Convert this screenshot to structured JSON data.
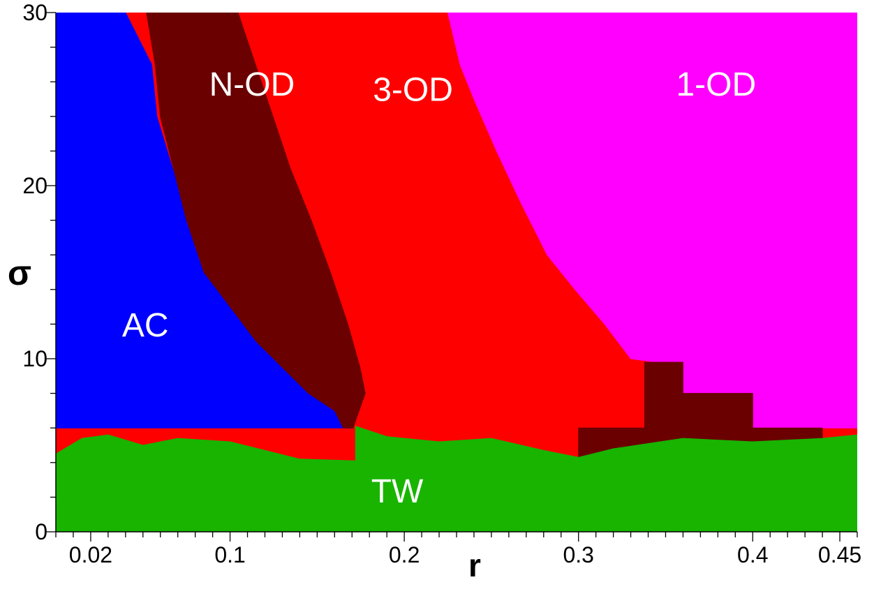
{
  "chart_data": {
    "type": "heatmap",
    "title": "",
    "xlabel": "r",
    "ylabel": "σ",
    "xlim": [
      0.0,
      0.46
    ],
    "ylim": [
      0,
      30
    ],
    "grid": false,
    "legend": "none",
    "x_ticks": [
      {
        "value": 0.02,
        "label": "0.02"
      },
      {
        "value": 0.1,
        "label": "0.1"
      },
      {
        "value": 0.2,
        "label": "0.2"
      },
      {
        "value": 0.3,
        "label": "0.3"
      },
      {
        "value": 0.4,
        "label": "0.4"
      },
      {
        "value": 0.45,
        "label": "0.45"
      }
    ],
    "y_ticks": [
      {
        "value": 0,
        "label": "0"
      },
      {
        "value": 10,
        "label": "10"
      },
      {
        "value": 20,
        "label": "20"
      },
      {
        "value": 30,
        "label": "30"
      }
    ],
    "regions": [
      {
        "name": "AC",
        "color": "#0000ff",
        "label_at": [
          0.038,
          11.3
        ],
        "boundary": [
          [
            0.0,
            30
          ],
          [
            0.0,
            6
          ],
          [
            0.17,
            6
          ],
          [
            0.165,
            7
          ],
          [
            0.15,
            8
          ],
          [
            0.13,
            9.5
          ],
          [
            0.115,
            11
          ],
          [
            0.1,
            13
          ],
          [
            0.085,
            15
          ],
          [
            0.075,
            18
          ],
          [
            0.07,
            20
          ],
          [
            0.058,
            24
          ],
          [
            0.055,
            27
          ],
          [
            0.04,
            30
          ]
        ]
      },
      {
        "name": "N-OD",
        "color": "#6a0000",
        "label_at": [
          0.088,
          25.2
        ],
        "boundary": [
          [
            0.052,
            30
          ],
          [
            0.105,
            30
          ],
          [
            0.115,
            27
          ],
          [
            0.125,
            24
          ],
          [
            0.135,
            21
          ],
          [
            0.147,
            18
          ],
          [
            0.158,
            15
          ],
          [
            0.168,
            12
          ],
          [
            0.175,
            9.5
          ],
          [
            0.178,
            8
          ],
          [
            0.175,
            6
          ],
          [
            0.165,
            6
          ],
          [
            0.16,
            7
          ],
          [
            0.145,
            8
          ],
          [
            0.13,
            9.5
          ],
          [
            0.115,
            11
          ],
          [
            0.1,
            13
          ],
          [
            0.085,
            15
          ],
          [
            0.075,
            18
          ],
          [
            0.07,
            20
          ],
          [
            0.06,
            24
          ],
          [
            0.057,
            27
          ]
        ]
      },
      {
        "name": "3-OD",
        "color": "#ff0000",
        "label_at": [
          0.182,
          24.9
        ],
        "boundary": [
          [
            0.105,
            30
          ],
          [
            0.225,
            30
          ],
          [
            0.232,
            27
          ],
          [
            0.24,
            25
          ],
          [
            0.253,
            22
          ],
          [
            0.267,
            19
          ],
          [
            0.282,
            16
          ],
          [
            0.298,
            14
          ],
          [
            0.313,
            12
          ],
          [
            0.328,
            9.5
          ],
          [
            0.338,
            8
          ],
          [
            0.338,
            6
          ],
          [
            0.171,
            6
          ],
          [
            0.178,
            8
          ],
          [
            0.175,
            9.5
          ],
          [
            0.168,
            12
          ],
          [
            0.158,
            15
          ],
          [
            0.147,
            18
          ],
          [
            0.135,
            21
          ],
          [
            0.125,
            24
          ],
          [
            0.115,
            27
          ]
        ]
      },
      {
        "name": "1-OD",
        "color": "#ff00ff",
        "label_at": [
          0.356,
          25.2
        ],
        "boundary": [
          [
            0.225,
            30
          ],
          [
            0.46,
            30
          ],
          [
            0.46,
            6
          ],
          [
            0.4,
            6
          ],
          [
            0.4,
            8
          ],
          [
            0.36,
            8
          ],
          [
            0.36,
            9.8
          ],
          [
            0.345,
            9.8
          ],
          [
            0.33,
            10
          ],
          [
            0.315,
            12
          ],
          [
            0.298,
            14
          ],
          [
            0.282,
            16
          ],
          [
            0.267,
            19
          ],
          [
            0.253,
            22
          ],
          [
            0.24,
            25
          ],
          [
            0.232,
            27
          ]
        ]
      },
      {
        "name": "N-OD",
        "color": "#6a0000",
        "label_at": null,
        "boundary": [
          [
            0.338,
            9.8
          ],
          [
            0.36,
            9.8
          ],
          [
            0.36,
            8
          ],
          [
            0.4,
            8
          ],
          [
            0.4,
            6
          ],
          [
            0.44,
            6
          ],
          [
            0.44,
            4
          ],
          [
            0.3,
            4
          ],
          [
            0.3,
            6
          ],
          [
            0.338,
            6
          ]
        ]
      },
      {
        "name": "TW",
        "color": "#18b400",
        "label_at": [
          0.181,
          1.7
        ],
        "boundary": [
          [
            0.0,
            0
          ],
          [
            0.46,
            0
          ],
          [
            0.46,
            5.6
          ],
          [
            0.44,
            5.4
          ],
          [
            0.4,
            5.2
          ],
          [
            0.36,
            5.4
          ],
          [
            0.32,
            4.8
          ],
          [
            0.3,
            4.3
          ],
          [
            0.28,
            4.7
          ],
          [
            0.25,
            5.4
          ],
          [
            0.22,
            5.2
          ],
          [
            0.19,
            5.5
          ],
          [
            0.172,
            6.1
          ],
          [
            0.172,
            4.1
          ],
          [
            0.14,
            4.2
          ],
          [
            0.1,
            5.2
          ],
          [
            0.07,
            5.4
          ],
          [
            0.05,
            5.0
          ],
          [
            0.03,
            5.6
          ],
          [
            0.015,
            5.4
          ],
          [
            0.0,
            4.5
          ]
        ]
      }
    ]
  }
}
